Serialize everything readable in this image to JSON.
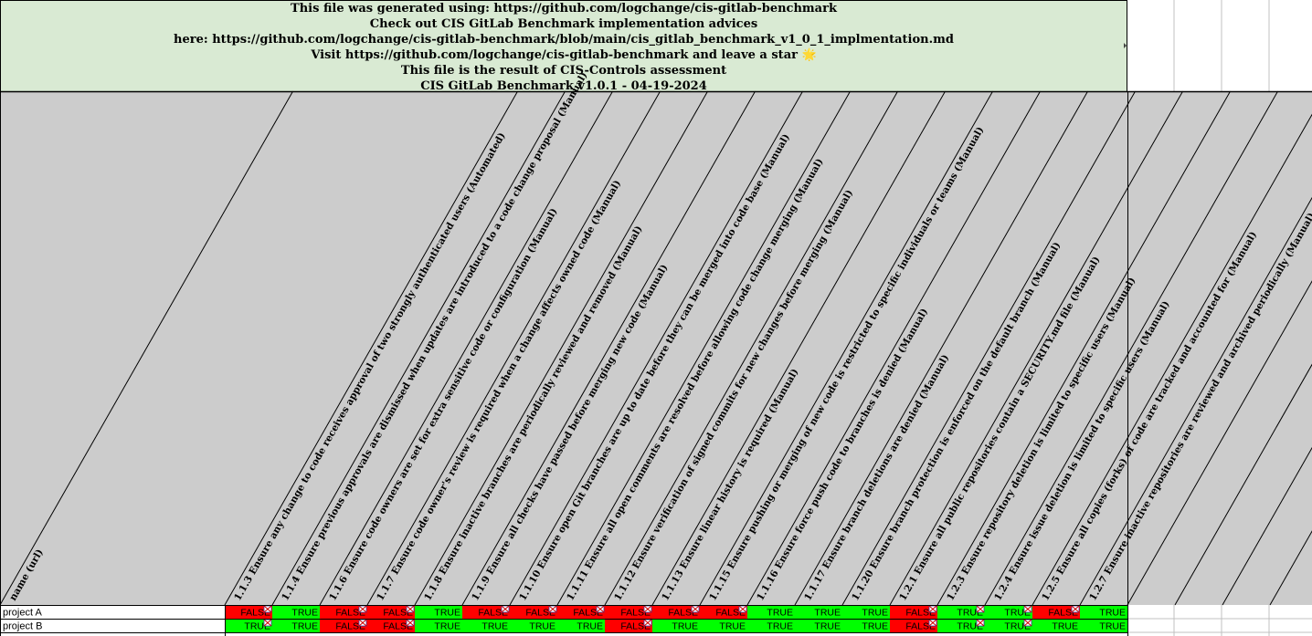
{
  "header": {
    "lines": [
      "This file was generated using: https://github.com/logchange/cis-gitlab-benchmark",
      "Check out CIS GitLab Benchmark implementation advices",
      "here: https://github.com/logchange/cis-gitlab-benchmark/blob/main/cis_gitlab_benchmark_v1_0_1_implmentation.md",
      "Visit https://github.com/logchange/cis-gitlab-benchmark and leave a star 🌟",
      "This file is the result of CIS-Controls assessment",
      "CIS GitLab Benchmark v1.0.1 - 04-19-2024"
    ],
    "background": "#d9ead3"
  },
  "first_column_header": "name (url)",
  "columns": [
    "1.1.3 Ensure any change to code receives approval of two strongly authenticated users (Automated)",
    "1.1.4 Ensure previous approvals are dismissed when updates are introduced to a code change proposal (Manual)",
    "1.1.6 Ensure code owners are set for extra sensitive code or configuration (Manual)",
    "1.1.7 Ensure code owner's review is required when a change affects owned code (Manual)",
    "1.1.8 Ensure inactive branches are periodically reviewed and removed (Manual)",
    "1.1.9 Ensure all checks have passed before merging new code (Manual)",
    "1.1.10 Ensure open Git branches are up to date before they can be merged into code base (Manual)",
    "1.1.11 Ensure all open comments are resolved before allowing code change merging (Manual)",
    "1.1.12 Ensure verification of signed commits for new changes before merging (Manual)",
    "1.1.13 Ensure linear history is required (Manual)",
    "1.1.15 Ensure pushing or merging of new code is restricted to specific individuals or teams (Manual)",
    "1.1.16 Ensure force push code to branches is denied (Manual)",
    "1.1.17 Ensure branch deletions are denied (Manual)",
    "1.1.20 Ensure branch protection is enforced on the default branch (Manual)",
    "1.2.1 Ensure all public repositories contain a SECURITY.md file (Manual)",
    "1.2.3 Ensure repository deletion is limited to specific users (Manual)",
    "1.2.4 Ensure issue deletion is limited to specific users (Manual)",
    "1.2.5 Ensure all copies (forks) of code are tracked and accounted for (Manual)",
    "1.2.7 Ensure inactive repositories are reviewed and archived periodically (Manual)"
  ],
  "rows": [
    {
      "name": "project A",
      "values": [
        "FALSE",
        "TRUE",
        "FALSE",
        "FALSE",
        "TRUE",
        "FALSE",
        "FALSE",
        "FALSE",
        "FALSE",
        "FALSE",
        "FALSE",
        "TRUE",
        "TRUE",
        "TRUE",
        "FALSE",
        "TRUE",
        "TRUE",
        "FALSE",
        "TRUE"
      ],
      "notes": [
        true,
        false,
        true,
        true,
        false,
        true,
        true,
        true,
        true,
        true,
        true,
        false,
        false,
        false,
        true,
        true,
        true,
        true,
        false
      ]
    },
    {
      "name": "project B",
      "values": [
        "TRUE",
        "TRUE",
        "FALSE",
        "FALSE",
        "TRUE",
        "TRUE",
        "TRUE",
        "TRUE",
        "FALSE",
        "TRUE",
        "TRUE",
        "TRUE",
        "TRUE",
        "TRUE",
        "FALSE",
        "TRUE",
        "TRUE",
        "TRUE",
        "TRUE"
      ],
      "notes": [
        true,
        false,
        true,
        true,
        false,
        false,
        false,
        false,
        true,
        false,
        false,
        false,
        false,
        false,
        true,
        true,
        true,
        false,
        false
      ]
    }
  ],
  "colors": {
    "true_fill": "#00ff00",
    "false_fill": "#ff0000",
    "header_band": "#cccccc",
    "grid": "#c0c0c0"
  }
}
